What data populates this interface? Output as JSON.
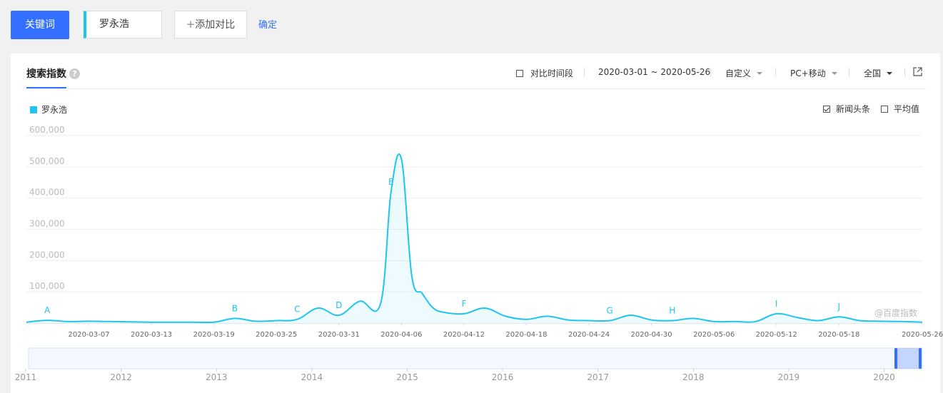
{
  "toolbar": {
    "keyword_button": "关键词",
    "keyword_value": "罗永浩",
    "add_compare": "添加对比",
    "confirm": "确定"
  },
  "panel": {
    "tab_title": "搜索指数",
    "help": "?",
    "compare_period": "对比时间段",
    "date_range": "2020-03-01 ~ 2020-05-26",
    "range_mode": "自定义",
    "device": "PC+移动",
    "region": "全国",
    "legend": "罗永浩",
    "news_headlines": "新闻头条",
    "news_headlines_checked": true,
    "average": "平均值",
    "average_checked": false,
    "watermark": "@百度指数"
  },
  "colors": {
    "accent": "#3370ff",
    "series": "#1ec5f0"
  },
  "chart_data": {
    "type": "area",
    "ylim": [
      0,
      600000
    ],
    "yticks": [
      100000,
      200000,
      300000,
      400000,
      500000,
      600000
    ],
    "ytick_labels": [
      "100,000",
      "200,000",
      "300,000",
      "400,000",
      "500,000",
      "600,000"
    ],
    "xtick_labels": [
      "2020-03-07",
      "2020-03-13",
      "2020-03-19",
      "2020-03-25",
      "2020-03-31",
      "2020-04-06",
      "2020-04-12",
      "2020-04-18",
      "2020-04-24",
      "2020-04-30",
      "2020-05-06",
      "2020-05-12",
      "2020-05-18",
      "2020-05-26"
    ],
    "series": [
      {
        "name": "罗永浩",
        "x": [
          "03-01",
          "03-03",
          "03-05",
          "03-07",
          "03-09",
          "03-11",
          "03-13",
          "03-15",
          "03-17",
          "03-19",
          "03-21",
          "03-23",
          "03-25",
          "03-27",
          "03-29",
          "03-31",
          "04-02",
          "04-04",
          "04-05",
          "04-06",
          "04-07",
          "04-08",
          "04-09",
          "04-10",
          "04-12",
          "04-14",
          "04-16",
          "04-18",
          "04-20",
          "04-22",
          "04-24",
          "04-26",
          "04-28",
          "04-30",
          "05-02",
          "05-04",
          "05-06",
          "05-08",
          "05-10",
          "05-12",
          "05-14",
          "05-16",
          "05-18",
          "05-20",
          "05-22",
          "05-24",
          "05-26"
        ],
        "values": [
          3000,
          9000,
          5000,
          6000,
          5000,
          4000,
          3000,
          3000,
          3000,
          3000,
          15000,
          6000,
          8000,
          12000,
          48000,
          25000,
          70000,
          63000,
          420000,
          525000,
          150000,
          95000,
          50000,
          35000,
          30000,
          48000,
          22000,
          12000,
          22000,
          10000,
          8000,
          8000,
          25000,
          10000,
          8000,
          15000,
          5000,
          5000,
          5000,
          30000,
          18000,
          8000,
          20000,
          8000,
          6000,
          5000,
          3000
        ]
      }
    ],
    "annotations": [
      {
        "label": "A",
        "x": "03-03"
      },
      {
        "label": "B",
        "x": "03-21"
      },
      {
        "label": "C",
        "x": "03-27"
      },
      {
        "label": "D",
        "x": "03-31"
      },
      {
        "label": "E",
        "x": "04-05"
      },
      {
        "label": "F",
        "x": "04-12"
      },
      {
        "label": "G",
        "x": "04-26"
      },
      {
        "label": "H",
        "x": "05-02"
      },
      {
        "label": "I",
        "x": "05-12"
      },
      {
        "label": "J",
        "x": "05-18"
      }
    ],
    "overview_years": [
      "2011",
      "2012",
      "2013",
      "2014",
      "2015",
      "2016",
      "2017",
      "2018",
      "2019",
      "2020"
    ]
  }
}
